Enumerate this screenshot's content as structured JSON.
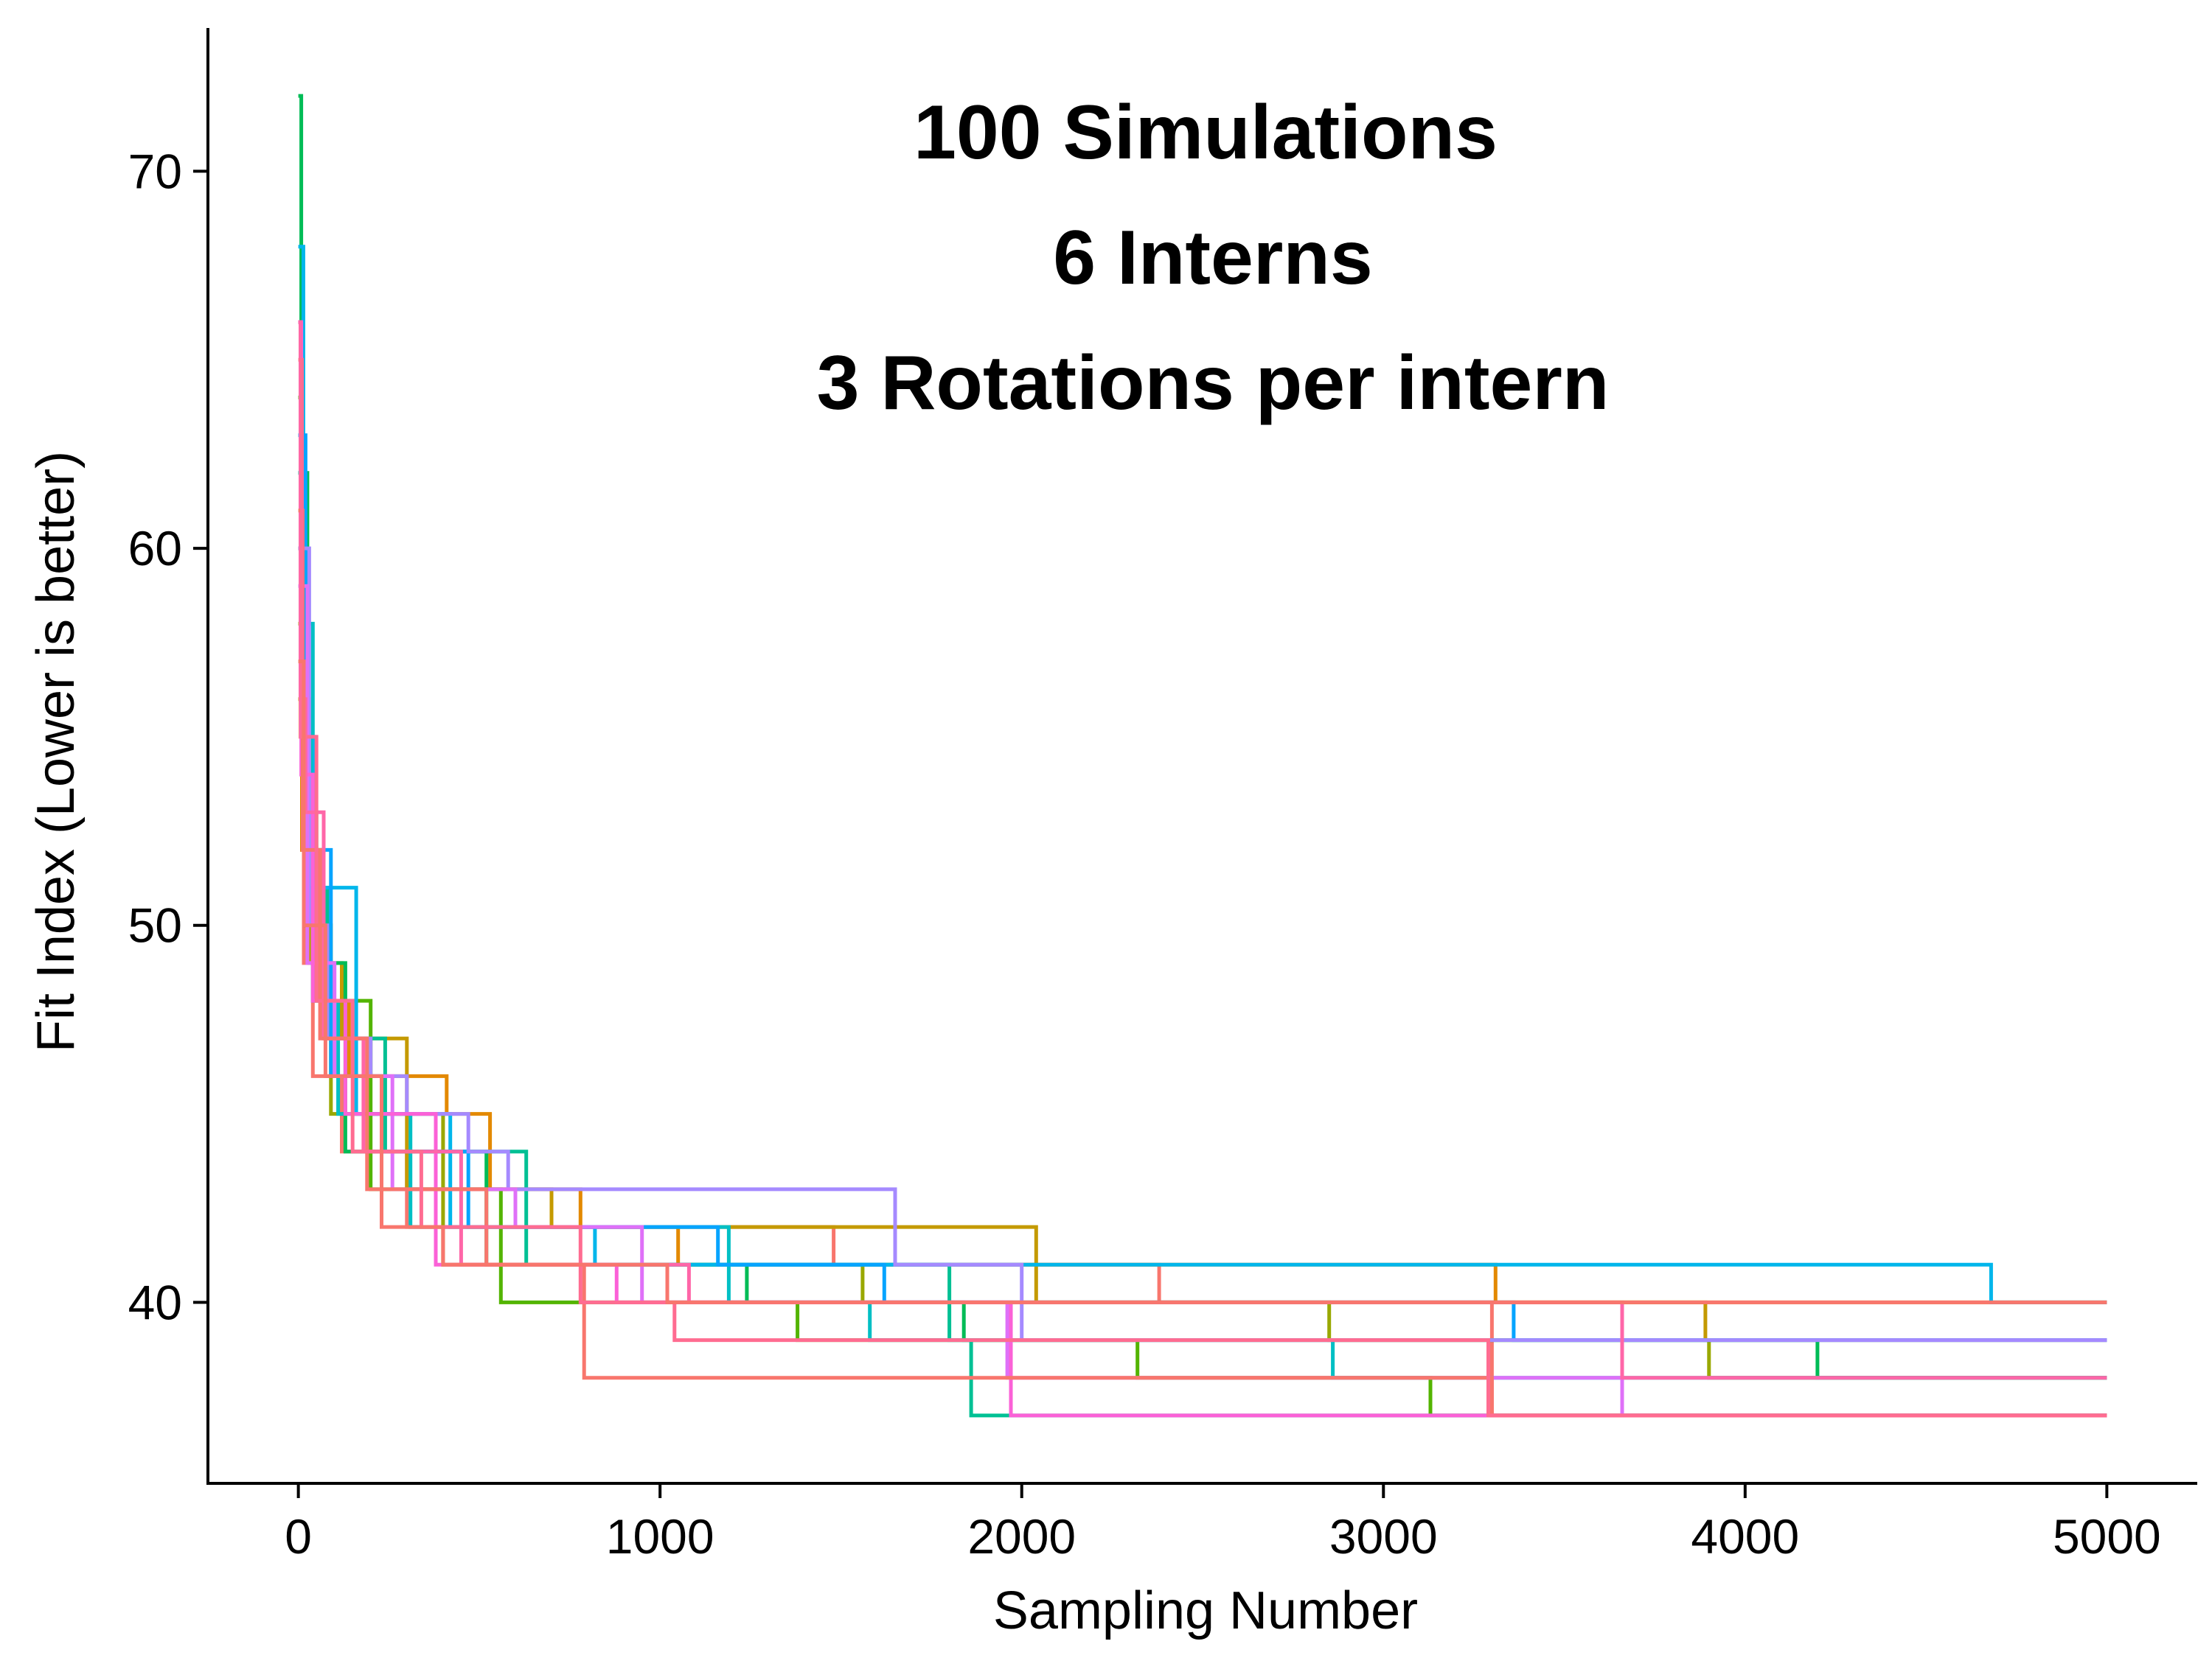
{
  "chart_data": {
    "type": "line",
    "title_lines": [
      "100 Simulations",
      "6 Interns",
      "3 Rotations per intern"
    ],
    "xlabel": "Sampling Number",
    "ylabel": "Fit Index (Lower is better)",
    "xlim": [
      -250,
      5250
    ],
    "ylim": [
      35.2,
      73.8
    ],
    "x_ticks": [
      0,
      1000,
      2000,
      3000,
      4000,
      5000
    ],
    "y_ticks": [
      40,
      50,
      60,
      70
    ],
    "grid": false,
    "legend": "none",
    "series": [
      {
        "color": "#F8766D",
        "steps": [
          [
            0,
            66
          ],
          [
            6,
            55
          ],
          [
            15,
            49
          ],
          [
            40,
            46
          ],
          [
            120,
            44
          ],
          [
            300,
            42
          ],
          [
            1480,
            41
          ],
          [
            2380,
            40
          ],
          [
            3300,
            37
          ]
        ]
      },
      {
        "color": "#E38900",
        "steps": [
          [
            0,
            60
          ],
          [
            10,
            52
          ],
          [
            60,
            48
          ],
          [
            140,
            46
          ],
          [
            410,
            45
          ],
          [
            530,
            43
          ],
          [
            780,
            42
          ],
          [
            1050,
            41
          ],
          [
            3310,
            40
          ]
        ]
      },
      {
        "color": "#C49A00",
        "steps": [
          [
            0,
            56
          ],
          [
            30,
            49
          ],
          [
            120,
            47
          ],
          [
            300,
            43
          ],
          [
            700,
            42
          ],
          [
            2040,
            40
          ],
          [
            3890,
            39
          ]
        ]
      },
      {
        "color": "#99A800",
        "steps": [
          [
            0,
            58
          ],
          [
            20,
            50
          ],
          [
            90,
            45
          ],
          [
            400,
            41
          ],
          [
            1560,
            40
          ],
          [
            2850,
            39
          ],
          [
            3900,
            38
          ]
        ]
      },
      {
        "color": "#53B400",
        "steps": [
          [
            0,
            64
          ],
          [
            12,
            53
          ],
          [
            50,
            48
          ],
          [
            200,
            43
          ],
          [
            560,
            40
          ],
          [
            1380,
            39
          ],
          [
            2320,
            38
          ],
          [
            3130,
            37
          ]
        ]
      },
      {
        "color": "#00BC56",
        "steps": [
          [
            0,
            72
          ],
          [
            8,
            62
          ],
          [
            25,
            50
          ],
          [
            70,
            49
          ],
          [
            130,
            44
          ],
          [
            520,
            41
          ],
          [
            1240,
            40
          ],
          [
            1840,
            39
          ],
          [
            4200,
            38
          ]
        ]
      },
      {
        "color": "#00C094",
        "steps": [
          [
            0,
            62
          ],
          [
            18,
            51
          ],
          [
            80,
            47
          ],
          [
            240,
            44
          ],
          [
            630,
            41
          ],
          [
            1800,
            39
          ],
          [
            1860,
            37
          ]
        ]
      },
      {
        "color": "#00BFC4",
        "steps": [
          [
            0,
            66
          ],
          [
            10,
            58
          ],
          [
            40,
            48
          ],
          [
            110,
            45
          ],
          [
            310,
            42
          ],
          [
            1190,
            40
          ],
          [
            1580,
            39
          ],
          [
            2860,
            38
          ]
        ]
      },
      {
        "color": "#00B6EB",
        "steps": [
          [
            0,
            68
          ],
          [
            14,
            55
          ],
          [
            45,
            51
          ],
          [
            160,
            45
          ],
          [
            420,
            42
          ],
          [
            820,
            41
          ],
          [
            4680,
            40
          ]
        ]
      },
      {
        "color": "#06A4FF",
        "steps": [
          [
            0,
            63
          ],
          [
            20,
            52
          ],
          [
            90,
            46
          ],
          [
            230,
            44
          ],
          [
            470,
            42
          ],
          [
            1160,
            41
          ],
          [
            1620,
            40
          ],
          [
            3360,
            39
          ]
        ]
      },
      {
        "color": "#A58AFF",
        "steps": [
          [
            0,
            60
          ],
          [
            30,
            50
          ],
          [
            80,
            47
          ],
          [
            200,
            46
          ],
          [
            300,
            45
          ],
          [
            470,
            44
          ],
          [
            580,
            43
          ],
          [
            1650,
            41
          ],
          [
            2000,
            39
          ]
        ]
      },
      {
        "color": "#DF70F8",
        "steps": [
          [
            0,
            59
          ],
          [
            25,
            49
          ],
          [
            100,
            46
          ],
          [
            260,
            43
          ],
          [
            600,
            42
          ],
          [
            950,
            40
          ],
          [
            1960,
            38
          ],
          [
            3660,
            37
          ]
        ]
      },
      {
        "color": "#FB61D7",
        "steps": [
          [
            0,
            66
          ],
          [
            8,
            54
          ],
          [
            40,
            48
          ],
          [
            130,
            45
          ],
          [
            380,
            41
          ],
          [
            880,
            40
          ],
          [
            1970,
            37
          ]
        ]
      },
      {
        "color": "#FF66A8",
        "steps": [
          [
            0,
            66
          ],
          [
            6,
            56
          ],
          [
            20,
            53
          ],
          [
            70,
            47
          ],
          [
            180,
            44
          ],
          [
            450,
            41
          ],
          [
            1080,
            40
          ],
          [
            3660,
            38
          ]
        ]
      },
      {
        "color": "#F8766D",
        "steps": [
          [
            0,
            61
          ],
          [
            12,
            52
          ],
          [
            60,
            47
          ],
          [
            190,
            43
          ],
          [
            520,
            41
          ],
          [
            790,
            38
          ],
          [
            3300,
            37
          ]
        ]
      },
      {
        "color": "#FF6C91",
        "steps": [
          [
            0,
            65
          ],
          [
            10,
            55
          ],
          [
            50,
            48
          ],
          [
            150,
            44
          ],
          [
            340,
            42
          ],
          [
            780,
            40
          ],
          [
            1040,
            39
          ],
          [
            3290,
            37
          ]
        ]
      },
      {
        "color": "#F8766D",
        "steps": [
          [
            0,
            57
          ],
          [
            15,
            50
          ],
          [
            75,
            46
          ],
          [
            230,
            42
          ],
          [
            400,
            41
          ],
          [
            1020,
            40
          ]
        ]
      }
    ]
  }
}
